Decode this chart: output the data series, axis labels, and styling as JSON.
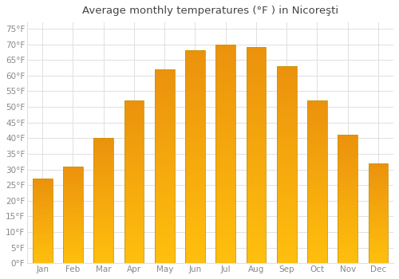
{
  "title": "Average monthly temperatures (°F ) in Nicoreşti",
  "months": [
    "Jan",
    "Feb",
    "Mar",
    "Apr",
    "May",
    "Jun",
    "Jul",
    "Aug",
    "Sep",
    "Oct",
    "Nov",
    "Dec"
  ],
  "values": [
    27,
    31,
    40,
    52,
    62,
    68,
    70,
    69,
    63,
    52,
    41,
    32
  ],
  "bar_color_bottom": "#FFBA30",
  "bar_color_top": "#FFA500",
  "bar_edge_color": "#C8960A",
  "background_color": "#FFFFFF",
  "grid_color": "#E0E0E0",
  "tick_label_color": "#888888",
  "title_color": "#444444",
  "ylim": [
    0,
    77
  ],
  "yticks": [
    0,
    5,
    10,
    15,
    20,
    25,
    30,
    35,
    40,
    45,
    50,
    55,
    60,
    65,
    70,
    75
  ],
  "ylabel_suffix": "°F",
  "title_fontsize": 9.5,
  "tick_fontsize": 7.5,
  "bar_width": 0.65
}
